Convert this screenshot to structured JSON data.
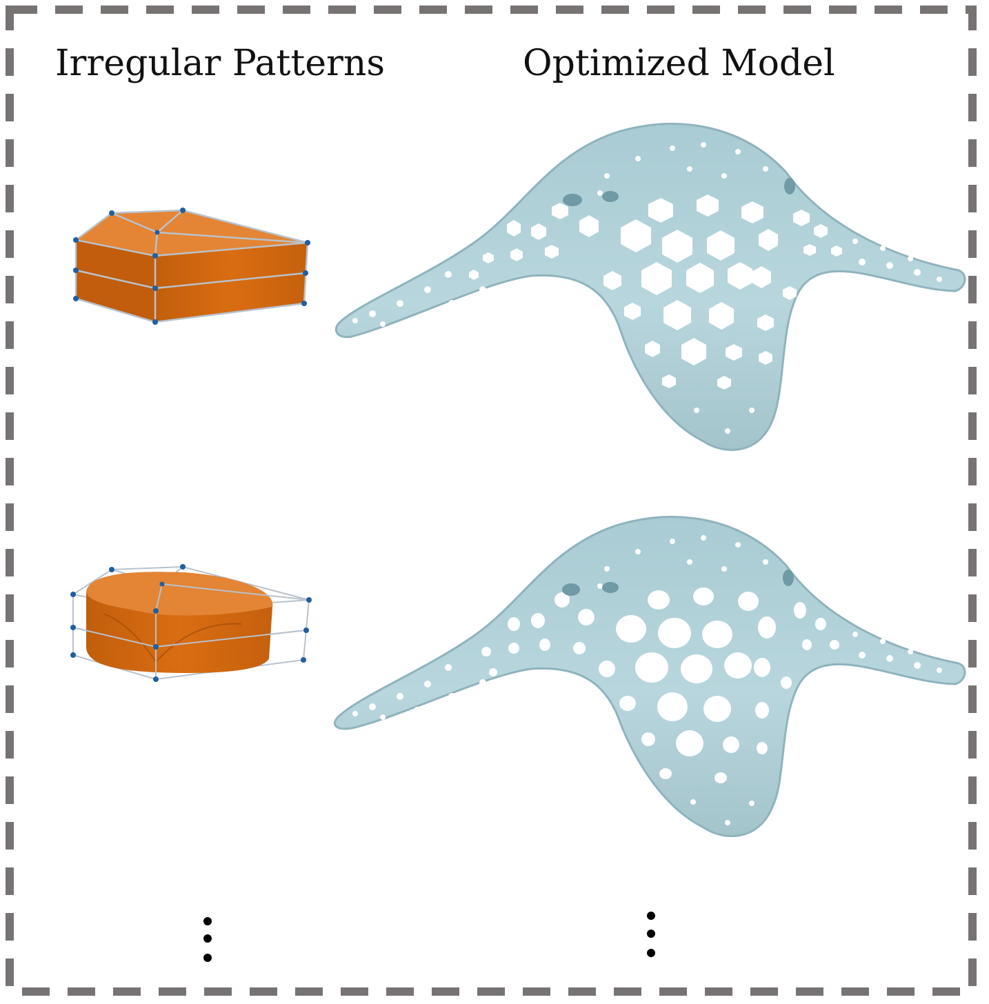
{
  "headings": {
    "left": "Irregular Patterns",
    "right": "Optimized Model"
  },
  "rows": [
    {
      "pattern": "hexagonal-prism-cell",
      "model_holes": "hexagon"
    },
    {
      "pattern": "rounded-prism-cell",
      "model_holes": "ellipse"
    }
  ],
  "continuation": "ellipsis-vertical",
  "colors": {
    "frame": "#777373",
    "cell_orange": "#d96d12",
    "cell_top": "#e38535",
    "control_point": "#1f5fa0",
    "lattice": "#b9c2cc",
    "surface": "#b4d3da",
    "surface_edge": "#8fb3bd",
    "hole": "#ffffff",
    "dots": "#000000"
  }
}
